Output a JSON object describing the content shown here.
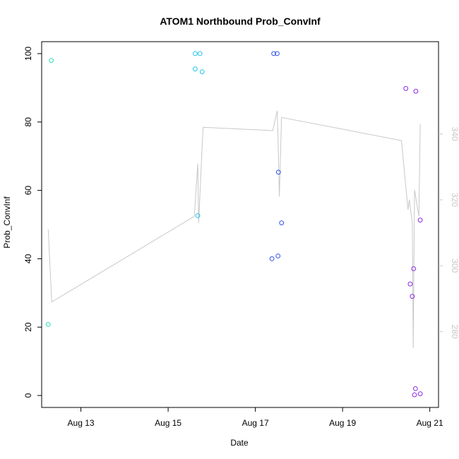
{
  "chart_data": {
    "type": "scatter",
    "title": "ATOM1 Northbound Prob_ConvInf",
    "xlabel": "Date",
    "ylabel": "Prob_ConvInf",
    "xlim": [
      12.1,
      21.2
    ],
    "ylim": [
      -3.5,
      103.5
    ],
    "x_ticks": [
      {
        "value": 13,
        "label": "Aug 13"
      },
      {
        "value": 15,
        "label": "Aug 15"
      },
      {
        "value": 17,
        "label": "Aug 17"
      },
      {
        "value": 19,
        "label": "Aug 19"
      },
      {
        "value": 21,
        "label": "Aug 21"
      }
    ],
    "y_ticks": [
      0,
      20,
      40,
      60,
      80,
      100
    ],
    "y2lim": [
      257,
      368
    ],
    "y2_ticks": [
      280,
      300,
      320,
      340
    ],
    "grid": false,
    "legend": "none",
    "series": [
      {
        "color": "#28e0b8",
        "points": [
          [
            12.25,
            20.8
          ],
          [
            12.32,
            98.0
          ]
        ]
      },
      {
        "color": "#22c4e8",
        "points": [
          [
            15.62,
            100
          ],
          [
            15.73,
            100
          ],
          [
            15.62,
            95.5
          ],
          [
            15.78,
            94.7
          ],
          [
            15.68,
            52.6
          ]
        ]
      },
      {
        "color": "#3050e6",
        "points": [
          [
            17.42,
            100
          ],
          [
            17.5,
            100
          ],
          [
            17.53,
            65.3
          ],
          [
            17.6,
            50.5
          ],
          [
            17.52,
            40.8
          ],
          [
            17.38,
            40.0
          ]
        ]
      },
      {
        "color": "#8a2be6",
        "points": [
          [
            20.45,
            89.8
          ],
          [
            20.68,
            89.0
          ],
          [
            20.78,
            51.3
          ],
          [
            20.63,
            37.1
          ],
          [
            20.55,
            32.6
          ],
          [
            20.6,
            29.0
          ],
          [
            20.67,
            2.0
          ],
          [
            20.65,
            0.2
          ],
          [
            20.78,
            0.5
          ]
        ]
      }
    ],
    "secondary_line": {
      "color": "#c8c8c8",
      "axis": "right",
      "points": [
        [
          12.25,
          311
        ],
        [
          12.33,
          289
        ],
        [
          15.6,
          315
        ],
        [
          15.68,
          331
        ],
        [
          15.7,
          313
        ],
        [
          15.8,
          342
        ],
        [
          17.4,
          341
        ],
        [
          17.5,
          347
        ],
        [
          17.52,
          339
        ],
        [
          17.55,
          321
        ],
        [
          17.6,
          345
        ],
        [
          20.35,
          338
        ],
        [
          20.5,
          317
        ],
        [
          20.53,
          320
        ],
        [
          20.6,
          313
        ],
        [
          20.62,
          275
        ],
        [
          20.65,
          323
        ],
        [
          20.75,
          315
        ],
        [
          20.78,
          343
        ]
      ]
    }
  }
}
